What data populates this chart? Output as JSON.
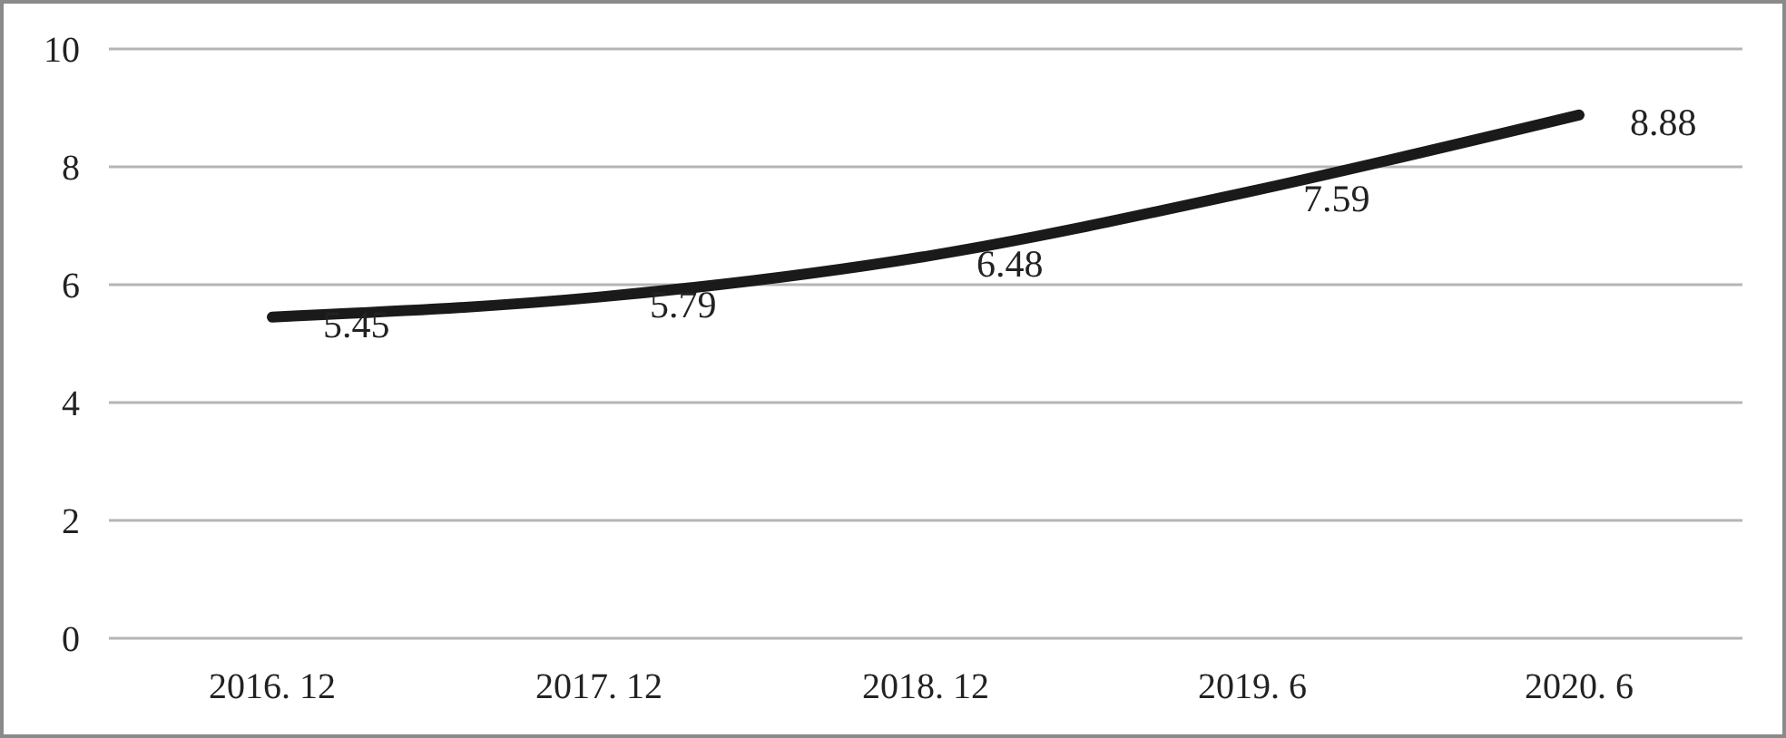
{
  "chart_data": {
    "type": "line",
    "categories": [
      "2016. 12",
      "2017. 12",
      "2018. 12",
      "2019. 6",
      "2020. 6"
    ],
    "series": [
      {
        "color": "#1a1a1a",
        "values": [
          5.45,
          5.79,
          6.48,
          7.59,
          8.88
        ]
      }
    ],
    "ylim": [
      0,
      10
    ],
    "yticks": [
      0,
      2,
      4,
      6,
      8,
      10
    ],
    "grid": "y",
    "data_labels": true,
    "marker": "none",
    "line_style": "solid"
  }
}
